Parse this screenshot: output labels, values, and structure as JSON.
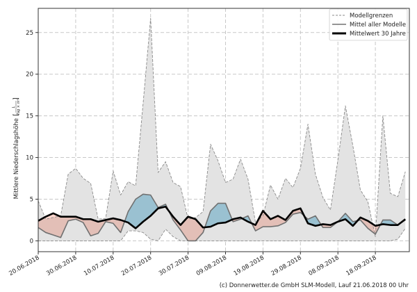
{
  "chart_data": {
    "type": "area",
    "ylabel": "Mittlere Niederschlagshöhe",
    "yunit": {
      "numerator": "L",
      "denominator": "Tag × m²"
    },
    "ylim": [
      -1.3,
      27.9
    ],
    "yticks": [
      0,
      5,
      10,
      15,
      20,
      25
    ],
    "xticks": [
      "20.06.2018",
      "30.06.2018",
      "10.07.2018",
      "20.07.2018",
      "30.07.2018",
      "09.08.2018",
      "19.08.2018",
      "29.08.2018",
      "08.09.2018",
      "18.09.2018"
    ],
    "grid": true,
    "legend_position": "top-right",
    "x": [
      "2018-06-20",
      "2018-06-22",
      "2018-06-24",
      "2018-06-26",
      "2018-06-28",
      "2018-06-30",
      "2018-07-02",
      "2018-07-04",
      "2018-07-06",
      "2018-07-08",
      "2018-07-10",
      "2018-07-12",
      "2018-07-14",
      "2018-07-16",
      "2018-07-18",
      "2018-07-20",
      "2018-07-22",
      "2018-07-24",
      "2018-07-26",
      "2018-07-28",
      "2018-07-30",
      "2018-08-01",
      "2018-08-03",
      "2018-08-05",
      "2018-08-07",
      "2018-08-09",
      "2018-08-11",
      "2018-08-13",
      "2018-08-15",
      "2018-08-17",
      "2018-08-19",
      "2018-08-21",
      "2018-08-23",
      "2018-08-25",
      "2018-08-27",
      "2018-08-29",
      "2018-08-31",
      "2018-09-02",
      "2018-09-04",
      "2018-09-06",
      "2018-09-08",
      "2018-09-10",
      "2018-09-12",
      "2018-09-14",
      "2018-09-16",
      "2018-09-18",
      "2018-09-20",
      "2018-09-22",
      "2018-09-24",
      "2018-09-26"
    ],
    "series": [
      {
        "name": "Modellgrenzen",
        "role": "upper",
        "values": [
          4.8,
          2.6,
          2.8,
          3.0,
          8.0,
          8.7,
          7.5,
          6.9,
          2.6,
          2.7,
          8.4,
          5.5,
          7.1,
          6.6,
          16.5,
          26.7,
          8.2,
          9.5,
          7.0,
          6.5,
          2.6,
          2.8,
          3.5,
          11.6,
          9.6,
          7.0,
          7.4,
          9.8,
          7.4,
          2.2,
          3.0,
          6.7,
          5.0,
          7.5,
          6.4,
          8.7,
          14.0,
          8.0,
          5.2,
          3.7,
          9.7,
          16.2,
          11.4,
          6.1,
          4.7,
          0.5,
          15.0,
          5.7,
          5.3,
          8.3
        ]
      },
      {
        "name": "Modellgrenzen",
        "role": "lower",
        "values": [
          0,
          0,
          0,
          0,
          0,
          0,
          0,
          0,
          0,
          0,
          0,
          0,
          1.2,
          1.2,
          1.0,
          0.2,
          0,
          1.4,
          0.5,
          0,
          0,
          0,
          0,
          0,
          0,
          0,
          0,
          0,
          0,
          0,
          0,
          0,
          0,
          0,
          0,
          0,
          0,
          0,
          0,
          0,
          0,
          0,
          0,
          0,
          0,
          0,
          0,
          0,
          0.2,
          1.5
        ]
      },
      {
        "name": "Mittel aller Modelle",
        "values": [
          1.6,
          1.0,
          0.7,
          0.4,
          2.4,
          2.6,
          2.2,
          0.6,
          0.9,
          2.3,
          2.1,
          1.0,
          3.5,
          5.0,
          5.6,
          5.5,
          4.0,
          4.4,
          2.5,
          1.3,
          0,
          0,
          1.0,
          3.6,
          4.5,
          4.5,
          2.3,
          2.6,
          3.0,
          1.2,
          1.7,
          1.7,
          1.8,
          2.2,
          3.2,
          3.4,
          2.6,
          3.0,
          1.6,
          1.6,
          2.3,
          3.3,
          2.3,
          2.5,
          1.5,
          0.8,
          2.5,
          2.5,
          1.9,
          2.5
        ]
      },
      {
        "name": "Mittelwert 30 Jahre",
        "values": [
          2.4,
          2.9,
          3.3,
          2.9,
          2.9,
          2.9,
          2.6,
          2.6,
          2.3,
          2.5,
          2.7,
          2.5,
          2.2,
          1.5,
          2.3,
          3.0,
          3.9,
          4.1,
          2.9,
          1.9,
          2.9,
          2.6,
          1.6,
          1.7,
          2.1,
          2.2,
          2.6,
          2.8,
          2.3,
          1.9,
          3.6,
          2.6,
          3.0,
          2.5,
          3.6,
          3.9,
          2.1,
          1.8,
          2.0,
          1.9,
          2.3,
          2.6,
          1.8,
          2.8,
          2.4,
          1.8,
          2.0,
          1.9,
          1.9,
          2.6
        ]
      }
    ],
    "colors": {
      "range_fill": "#e3e3e3",
      "range_line": "#8a8a8a",
      "model_mean": "#707070",
      "climate_mean": "#000000",
      "below": "#ffcabe",
      "above": "#a9d7ea"
    }
  },
  "legend": [
    {
      "label": "Modellgrenzen",
      "style": "dashed"
    },
    {
      "label": "Mittel aller Modelle",
      "style": "gray"
    },
    {
      "label": "Mittelwert 30 Jahre",
      "style": "bold"
    }
  ],
  "footer": "(c) Donnerwetter.de GmbH SLM-Modell, Lauf 21.06.2018 00 Uhr"
}
